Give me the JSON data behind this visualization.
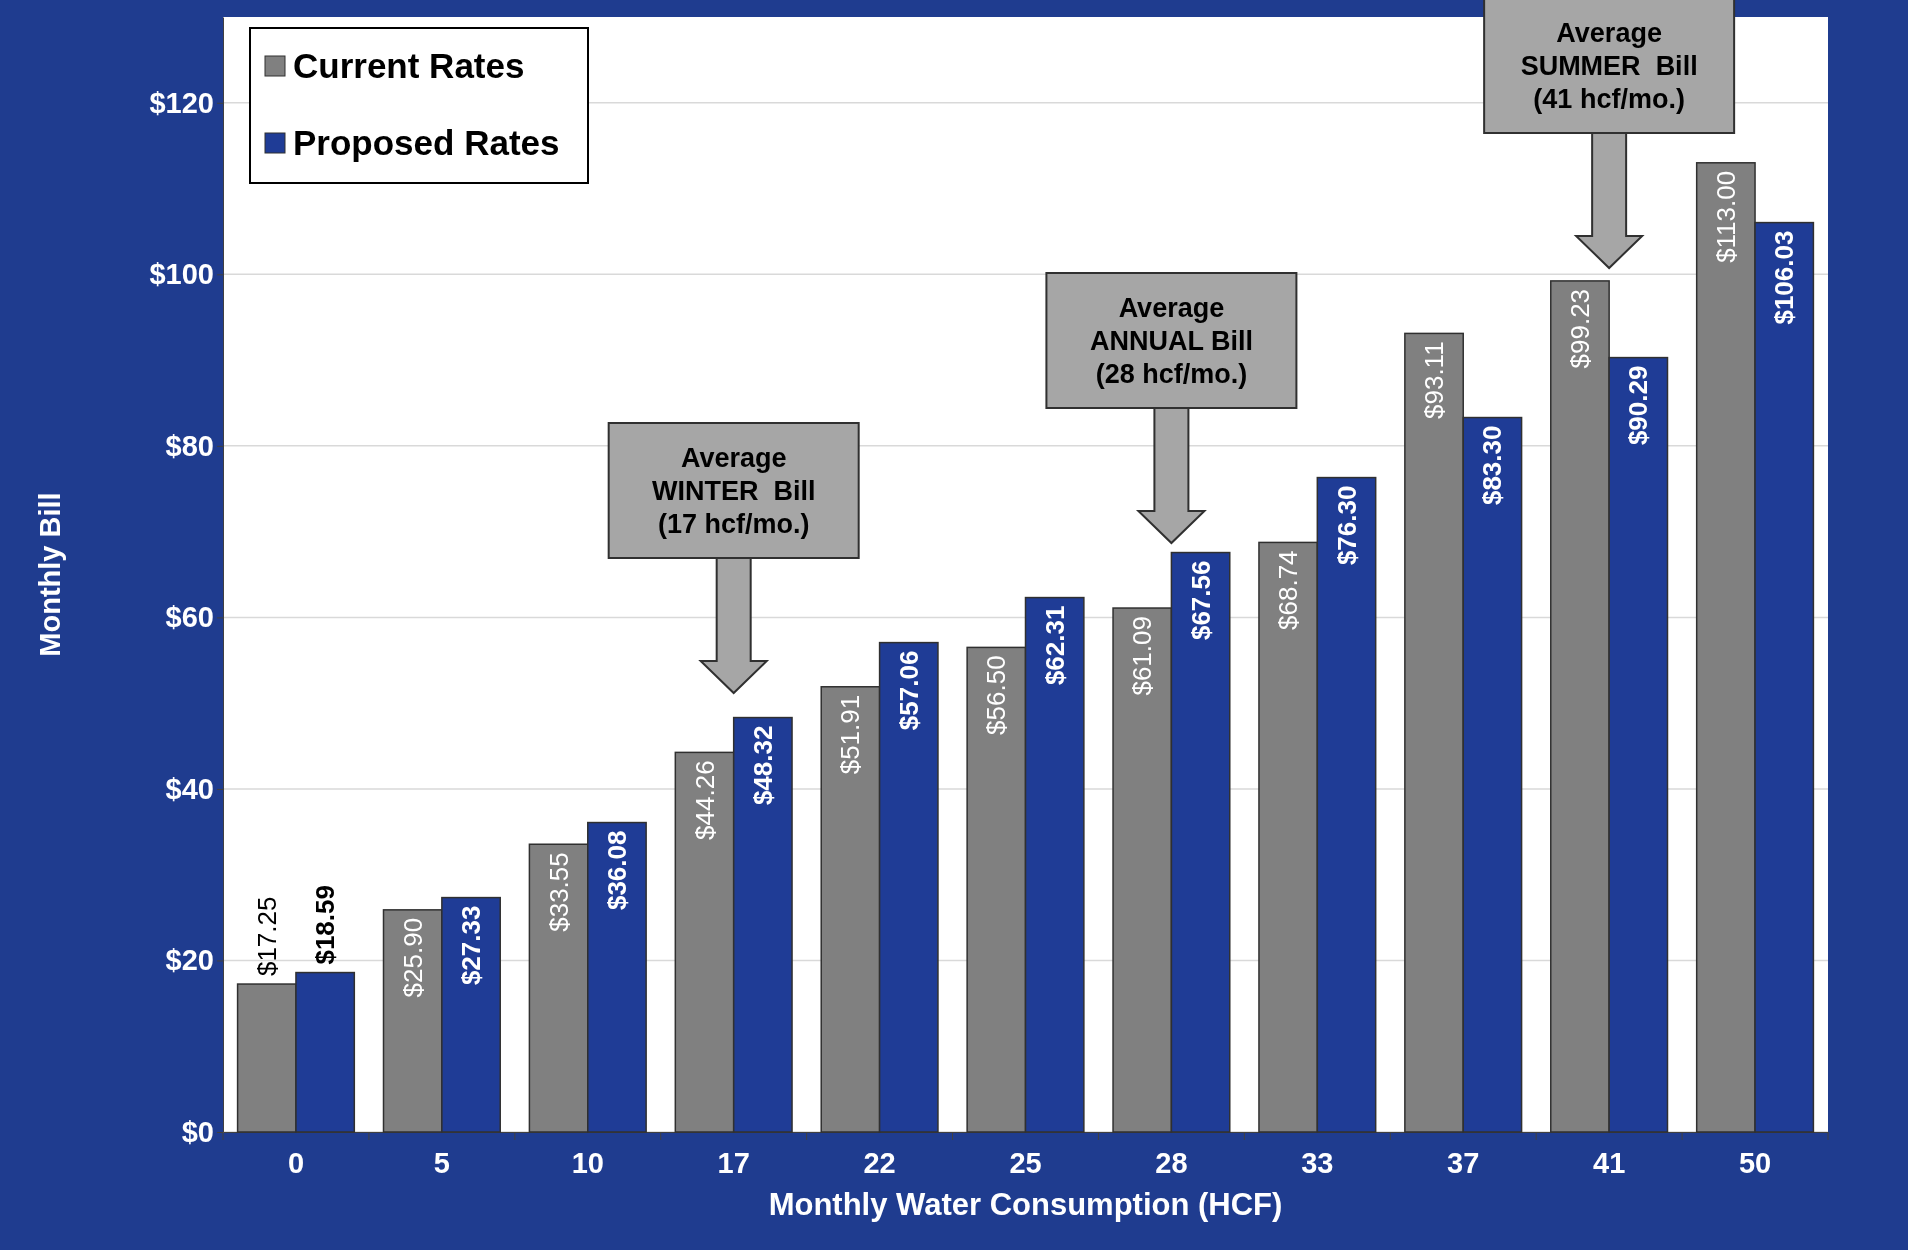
{
  "chart_data": {
    "type": "bar",
    "xlabel": "Monthly Water Consumption (HCF)",
    "ylabel": "Monthly Bill",
    "categories": [
      "0",
      "5",
      "10",
      "17",
      "22",
      "25",
      "28",
      "33",
      "37",
      "41",
      "50"
    ],
    "series": [
      {
        "name": "Current Rates",
        "color": "#808080",
        "values": [
          17.25,
          25.9,
          33.55,
          44.26,
          51.91,
          56.5,
          61.09,
          68.74,
          93.11,
          99.23,
          113.0
        ],
        "value_labels": [
          "$17.25",
          "$25.90",
          "$33.55",
          "$44.26",
          "$51.91",
          "$56.50",
          "$61.09",
          "$68.74",
          "$93.11",
          "$99.23",
          "$113.00"
        ]
      },
      {
        "name": "Proposed Rates",
        "color": "#1f3c96",
        "values": [
          18.59,
          27.33,
          36.08,
          48.32,
          57.06,
          62.31,
          67.56,
          76.3,
          83.3,
          90.29,
          106.03
        ],
        "value_labels": [
          "$18.59",
          "$27.33",
          "$36.08",
          "$48.32",
          "$57.06",
          "$62.31",
          "$67.56",
          "$76.30",
          "$83.30",
          "$90.29",
          "$106.03"
        ]
      }
    ],
    "ylim": [
      0,
      130
    ],
    "yticks": [
      {
        "value": 0,
        "label": "$0"
      },
      {
        "value": 20,
        "label": "$20"
      },
      {
        "value": 40,
        "label": "$40"
      },
      {
        "value": 60,
        "label": "$60"
      },
      {
        "value": 80,
        "label": "$80"
      },
      {
        "value": 100,
        "label": "$100"
      },
      {
        "value": 120,
        "label": "$120"
      }
    ],
    "grid": "y",
    "legend": "top left",
    "annotations": [
      "Average\nWINTER  Bill\n(17 hcf/mo.)",
      "Average\nANNUAL Bill\n(28 hcf/mo.)",
      "Average\nSUMMER  Bill\n(41 hcf/mo.)"
    ]
  }
}
